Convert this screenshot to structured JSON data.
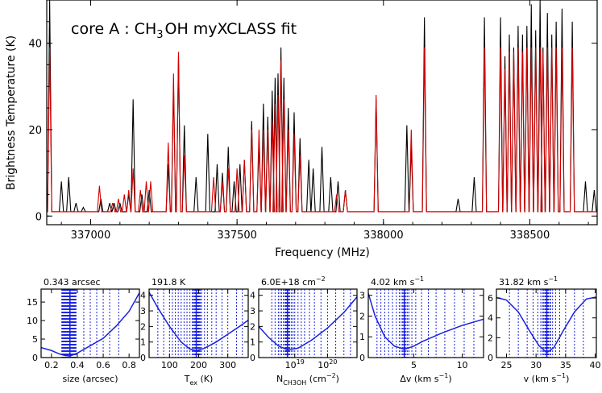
{
  "chart_data": [
    {
      "type": "line",
      "title": "core A : CH",
      "title_sub": "3",
      "title_rest": "OH myXCLASS fit",
      "xlabel": "Frequency (MHz)",
      "ylabel": "Brightness Temperature (K)",
      "xlim": [
        336850,
        338730
      ],
      "ylim": [
        -2,
        50
      ],
      "x_ticks": [
        337000,
        337500,
        338000,
        338500
      ],
      "x_tick_labels": [
        "337000",
        "337500",
        "338000",
        "338500"
      ],
      "y_ticks": [
        0,
        20,
        40
      ],
      "y_tick_labels": [
        "0",
        "20",
        "40"
      ],
      "baseline": 1.0,
      "series": [
        {
          "name": "",
          "color": "#000000",
          "lines": [
            [
              336860,
              50
            ],
            [
              336900,
              8
            ],
            [
              336925,
              9
            ],
            [
              336950,
              3
            ],
            [
              336975,
              2
            ],
            [
              337035,
              4
            ],
            [
              337065,
              3
            ],
            [
              337080,
              3
            ],
            [
              337100,
              3
            ],
            [
              337130,
              5
            ],
            [
              337145,
              27
            ],
            [
              337175,
              5
            ],
            [
              337200,
              6
            ],
            [
              337265,
              12
            ],
            [
              337283,
              30
            ],
            [
              337300,
              37
            ],
            [
              337320,
              21
            ],
            [
              337360,
              9
            ],
            [
              337400,
              19
            ],
            [
              337432,
              12
            ],
            [
              337450,
              10
            ],
            [
              337470,
              16
            ],
            [
              337490,
              8
            ],
            [
              337510,
              12
            ],
            [
              337525,
              13
            ],
            [
              337550,
              22
            ],
            [
              337575,
              17
            ],
            [
              337590,
              26
            ],
            [
              337605,
              23
            ],
            [
              337620,
              29
            ],
            [
              337630,
              32
            ],
            [
              337640,
              33
            ],
            [
              337650,
              39
            ],
            [
              337660,
              32
            ],
            [
              337675,
              25
            ],
            [
              337695,
              24
            ],
            [
              337715,
              18
            ],
            [
              337745,
              13
            ],
            [
              337760,
              11
            ],
            [
              337790,
              16
            ],
            [
              337820,
              9
            ],
            [
              337845,
              8
            ],
            [
              337870,
              6
            ],
            [
              337975,
              27
            ],
            [
              338080,
              21
            ],
            [
              338095,
              16
            ],
            [
              338140,
              46
            ],
            [
              338255,
              4
            ],
            [
              338310,
              9
            ],
            [
              338345,
              46
            ],
            [
              338400,
              46
            ],
            [
              338415,
              37
            ],
            [
              338430,
              42
            ],
            [
              338445,
              39
            ],
            [
              338460,
              44
            ],
            [
              338475,
              42
            ],
            [
              338490,
              44
            ],
            [
              338505,
              49
            ],
            [
              338520,
              43
            ],
            [
              338535,
              52
            ],
            [
              338545,
              39
            ],
            [
              338560,
              47
            ],
            [
              338575,
              42
            ],
            [
              338590,
              45
            ],
            [
              338610,
              48
            ],
            [
              338645,
              45
            ],
            [
              338690,
              8
            ],
            [
              338720,
              6
            ]
          ]
        },
        {
          "name": "",
          "color": "#d40000",
          "lines": [
            [
              336860,
              39
            ],
            [
              337030,
              7
            ],
            [
              337075,
              3
            ],
            [
              337095,
              4
            ],
            [
              337115,
              5
            ],
            [
              337130,
              6
            ],
            [
              337145,
              11
            ],
            [
              337170,
              6
            ],
            [
              337190,
              8
            ],
            [
              337205,
              8
            ],
            [
              337265,
              17
            ],
            [
              337283,
              33
            ],
            [
              337300,
              38
            ],
            [
              337320,
              14
            ],
            [
              337420,
              9
            ],
            [
              337450,
              8
            ],
            [
              337470,
              11
            ],
            [
              337500,
              11
            ],
            [
              337525,
              13
            ],
            [
              337550,
              20
            ],
            [
              337575,
              20
            ],
            [
              337590,
              20
            ],
            [
              337605,
              20
            ],
            [
              337620,
              22
            ],
            [
              337630,
              26
            ],
            [
              337640,
              28
            ],
            [
              337650,
              36
            ],
            [
              337660,
              27
            ],
            [
              337675,
              20
            ],
            [
              337695,
              19
            ],
            [
              337715,
              14
            ],
            [
              337840,
              5
            ],
            [
              337870,
              6
            ],
            [
              337975,
              28
            ],
            [
              338095,
              20
            ],
            [
              338140,
              39
            ],
            [
              338345,
              39
            ],
            [
              338400,
              39
            ],
            [
              338415,
              34
            ],
            [
              338430,
              38
            ],
            [
              338445,
              38
            ],
            [
              338460,
              39
            ],
            [
              338475,
              38
            ],
            [
              338490,
              39
            ],
            [
              338505,
              39
            ],
            [
              338520,
              39
            ],
            [
              338535,
              39
            ],
            [
              338545,
              38
            ],
            [
              338560,
              39
            ],
            [
              338575,
              39
            ],
            [
              338590,
              39
            ],
            [
              338610,
              39
            ],
            [
              338645,
              39
            ]
          ]
        }
      ]
    },
    {
      "type": "line",
      "title": "0.343 arcsec",
      "xlabel": "size (arcsec)",
      "xlim": [
        0.12,
        0.88
      ],
      "ylim": [
        0,
        18.5
      ],
      "x_ticks": [
        0.2,
        0.4,
        0.6,
        0.8
      ],
      "x_tick_labels": [
        "0.2",
        "0.4",
        "0.6",
        "0.8"
      ],
      "y_ticks": [
        0,
        5,
        10,
        15
      ],
      "y_tick_labels": [
        "0",
        "5",
        "10",
        "15"
      ],
      "best": 0.343,
      "curve": [
        [
          0.12,
          2.7
        ],
        [
          0.2,
          1.9
        ],
        [
          0.26,
          1.0
        ],
        [
          0.3,
          0.6
        ],
        [
          0.343,
          0.4
        ],
        [
          0.4,
          1.2
        ],
        [
          0.5,
          3.2
        ],
        [
          0.6,
          5.2
        ],
        [
          0.7,
          8.5
        ],
        [
          0.8,
          12.5
        ],
        [
          0.88,
          17.5
        ]
      ],
      "samples": [
        0.28,
        0.285,
        0.29,
        0.295,
        0.3,
        0.305,
        0.31,
        0.315,
        0.32,
        0.325,
        0.33,
        0.335,
        0.34,
        0.345,
        0.35,
        0.355,
        0.36,
        0.365,
        0.37,
        0.375,
        0.38,
        0.385,
        0.39,
        0.45,
        0.5,
        0.55,
        0.6,
        0.65,
        0.72
      ]
    },
    {
      "type": "line",
      "title": "191.8 K",
      "xlabel": "T",
      "xlabel_sub": "ex",
      "xlabel_rest": " (K)",
      "xlim": [
        30,
        370
      ],
      "ylim": [
        0,
        4.4
      ],
      "x_ticks": [
        100,
        200,
        300
      ],
      "x_tick_labels": [
        "100",
        "200",
        "300"
      ],
      "y_ticks": [
        0,
        1,
        2,
        3,
        4
      ],
      "y_tick_labels": [
        "0",
        "1",
        "2",
        "3",
        "4"
      ],
      "best": 191.8,
      "curve": [
        [
          30,
          4.2
        ],
        [
          60,
          3.2
        ],
        [
          100,
          2.0
        ],
        [
          140,
          1.0
        ],
        [
          170,
          0.55
        ],
        [
          191.8,
          0.45
        ],
        [
          220,
          0.6
        ],
        [
          260,
          1.0
        ],
        [
          300,
          1.5
        ],
        [
          340,
          2.0
        ],
        [
          370,
          2.4
        ]
      ],
      "samples": [
        60,
        80,
        100,
        110,
        120,
        130,
        140,
        150,
        160,
        170,
        178,
        182,
        185,
        188,
        190,
        192,
        194,
        196,
        198,
        200,
        203,
        206,
        210,
        220,
        230,
        245,
        260,
        280,
        300,
        330,
        350
      ]
    },
    {
      "type": "line",
      "title": "6.0E+18 cm",
      "title_sup": "−2",
      "xlabel": "N",
      "xlabel_sub": "CH3OH",
      "xlabel_rest": " (cm",
      "xlabel_sup": "−2",
      "xlabel_end": ")",
      "log_x": true,
      "xlim": [
        17.9,
        20.9
      ],
      "ylim": [
        0,
        4.4
      ],
      "x_ticks": [
        19,
        20
      ],
      "x_tick_labels": [
        "10",
        "10"
      ],
      "x_tick_sups": [
        "19",
        "20"
      ],
      "y_ticks": [
        0,
        1,
        2,
        3,
        4
      ],
      "y_tick_labels": [
        "0",
        "1",
        "2",
        "3",
        "4"
      ],
      "best": 18.778,
      "curve": [
        [
          17.9,
          2.0
        ],
        [
          18.2,
          1.3
        ],
        [
          18.5,
          0.75
        ],
        [
          18.778,
          0.5
        ],
        [
          19.1,
          0.6
        ],
        [
          19.5,
          1.1
        ],
        [
          20.0,
          1.9
        ],
        [
          20.5,
          2.9
        ],
        [
          20.9,
          3.9
        ]
      ],
      "samples": [
        18.3,
        18.4,
        18.5,
        18.55,
        18.6,
        18.65,
        18.7,
        18.72,
        18.74,
        18.76,
        18.78,
        18.8,
        18.82,
        18.85,
        18.9,
        18.95,
        19.0,
        19.1,
        19.2,
        19.3,
        19.45,
        19.6,
        19.8,
        20.0,
        20.25,
        20.5,
        20.7
      ]
    },
    {
      "type": "line",
      "title": "4.02 km s",
      "title_sup": "−1",
      "xlabel": "Δv (km s",
      "xlabel_sup": "−1",
      "xlabel_end": ")",
      "xlim": [
        0.3,
        12.2
      ],
      "ylim": [
        0,
        3.3
      ],
      "x_ticks": [
        5,
        10
      ],
      "x_tick_labels": [
        "5",
        "10"
      ],
      "y_ticks": [
        0,
        1,
        2,
        3
      ],
      "y_tick_labels": [
        "0",
        "1",
        "2",
        "3"
      ],
      "best": 4.02,
      "curve": [
        [
          0.3,
          3.1
        ],
        [
          1.0,
          2.0
        ],
        [
          2.0,
          1.0
        ],
        [
          3.0,
          0.55
        ],
        [
          4.02,
          0.4
        ],
        [
          5.0,
          0.55
        ],
        [
          6.0,
          0.8
        ],
        [
          8.0,
          1.2
        ],
        [
          10.0,
          1.55
        ],
        [
          12.2,
          1.85
        ]
      ],
      "samples": [
        1.2,
        1.6,
        2.0,
        2.4,
        2.8,
        3.2,
        3.5,
        3.7,
        3.85,
        3.95,
        4.0,
        4.05,
        4.1,
        4.2,
        4.35,
        4.5,
        4.8,
        5.2,
        5.8,
        6.5,
        7.3,
        8.2,
        9.2,
        10.2,
        11.2
      ]
    },
    {
      "type": "line",
      "title": "31.82 km s",
      "title_sup": "−1",
      "xlabel": "v (km s",
      "xlabel_sup": "−1",
      "xlabel_end": ")",
      "xlim": [
        23.3,
        40.2
      ],
      "ylim": [
        0,
        6.9
      ],
      "x_ticks": [
        25,
        30,
        35,
        40
      ],
      "x_tick_labels": [
        "25",
        "30",
        "35",
        "40"
      ],
      "y_ticks": [
        0,
        2,
        4,
        6
      ],
      "y_tick_labels": [
        "0",
        "2",
        "4",
        "6"
      ],
      "best": 31.82,
      "curve": [
        [
          23.3,
          6.05
        ],
        [
          25,
          5.8
        ],
        [
          27,
          4.6
        ],
        [
          29,
          2.6
        ],
        [
          30.5,
          1.2
        ],
        [
          31.82,
          0.5
        ],
        [
          33,
          1.0
        ],
        [
          34.5,
          2.6
        ],
        [
          36.5,
          4.6
        ],
        [
          38.5,
          5.9
        ],
        [
          40.2,
          6.1
        ]
      ],
      "samples": [
        25.5,
        27,
        28.5,
        29.5,
        30.3,
        30.8,
        31.1,
        31.3,
        31.5,
        31.6,
        31.7,
        31.8,
        31.9,
        32.0,
        32.1,
        32.3,
        32.5,
        32.8,
        33.3,
        34,
        35,
        36.5,
        38
      ]
    }
  ]
}
